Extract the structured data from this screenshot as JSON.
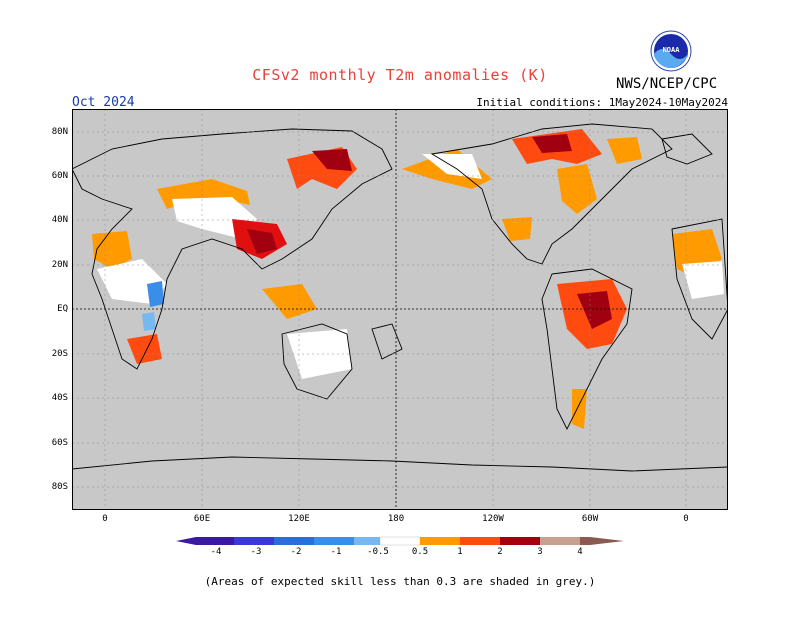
{
  "header": {
    "title": "CFSv2 monthly T2m anomalies (K)",
    "agency": "NWS/NCEP/CPC",
    "logo_text": "NOAA",
    "valid_month": "Oct 2024",
    "initial_conditions": "Initial conditions: 1May2024-10May2024"
  },
  "map": {
    "lat_labels": [
      "80N",
      "60N",
      "40N",
      "20N",
      "EQ",
      "20S",
      "40S",
      "60S",
      "80S"
    ],
    "lon_labels": [
      "0",
      "60E",
      "120E",
      "180",
      "120W",
      "60W",
      "0"
    ],
    "background_color": "#c8c8c8",
    "land_outline_color": "#000000"
  },
  "colorbar": {
    "labels": [
      "-4",
      "-3",
      "-2",
      "-1",
      "-0.5",
      "0.5",
      "1",
      "2",
      "3",
      "4"
    ],
    "colors": [
      "#3a1aa0",
      "#3a3ad0",
      "#2a6ed8",
      "#3a8ee8",
      "#78b8f0",
      "#ffffff",
      "#ff9a00",
      "#ff4a10",
      "#e01010",
      "#a00010",
      "#c8a090",
      "#8a5a50"
    ]
  },
  "footnote": "(Areas of expected skill less than 0.3 are shaded in grey.)"
}
